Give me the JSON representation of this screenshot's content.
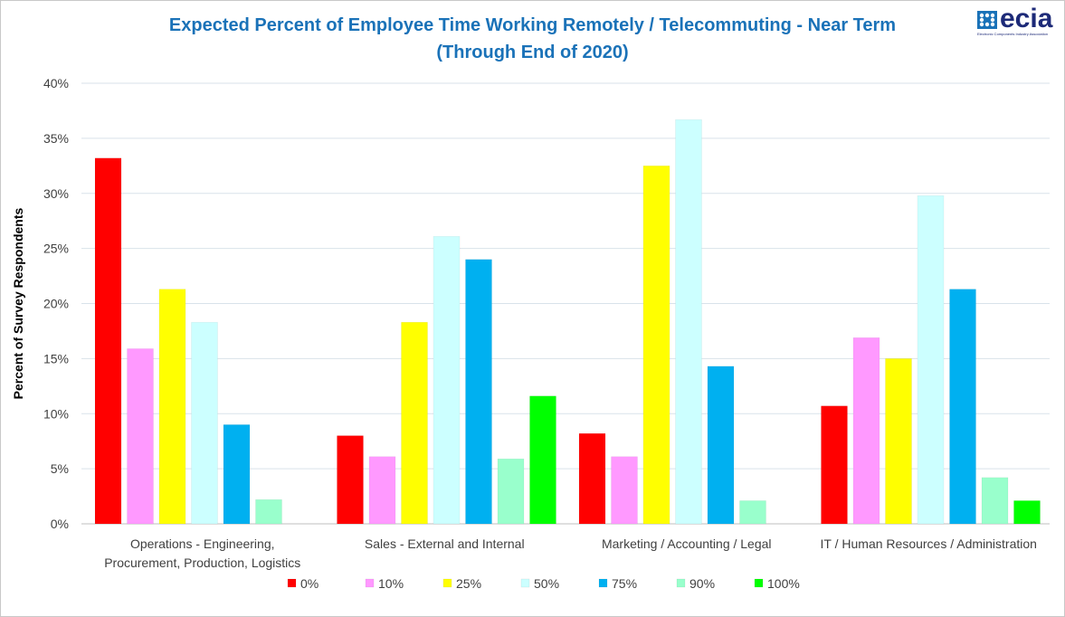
{
  "chart_data": {
    "type": "bar",
    "title": "Expected Percent of Employee Time Working Remotely / Telecommuting - Near Term",
    "subtitle": "(Through End of 2020)",
    "ylabel": "Percent of Survey Respondents",
    "xlabel": "",
    "ylim": [
      0,
      40
    ],
    "yticks": [
      "0%",
      "5%",
      "10%",
      "15%",
      "20%",
      "25%",
      "30%",
      "35%",
      "40%"
    ],
    "grid": true,
    "legend_position": "bottom",
    "categories": [
      [
        "Operations -  Engineering,",
        "Procurement, Production, Logistics"
      ],
      [
        "Sales - External and Internal"
      ],
      [
        "Marketing / Accounting / Legal"
      ],
      [
        "IT / Human Resources / Administration"
      ]
    ],
    "series": [
      {
        "name": "0%",
        "color": "#ff0000",
        "values": [
          33.2,
          8.0,
          8.2,
          10.7
        ]
      },
      {
        "name": "10%",
        "color": "#ff99ff",
        "values": [
          15.9,
          6.1,
          6.1,
          16.9
        ]
      },
      {
        "name": "25%",
        "color": "#ffff00",
        "values": [
          21.3,
          18.3,
          32.5,
          15.0
        ]
      },
      {
        "name": "50%",
        "color": "#ccffff",
        "values": [
          18.3,
          26.1,
          36.7,
          29.8
        ]
      },
      {
        "name": "75%",
        "color": "#00b0f0",
        "values": [
          9.0,
          24.0,
          14.3,
          21.3
        ]
      },
      {
        "name": "90%",
        "color": "#99ffcc",
        "values": [
          2.2,
          5.9,
          2.1,
          4.2
        ]
      },
      {
        "name": "100%",
        "color": "#00ff00",
        "values": [
          0,
          11.6,
          0,
          2.1
        ]
      }
    ]
  },
  "logo": {
    "word": "ecia",
    "tagline": "Electronic Components Industry Association"
  }
}
